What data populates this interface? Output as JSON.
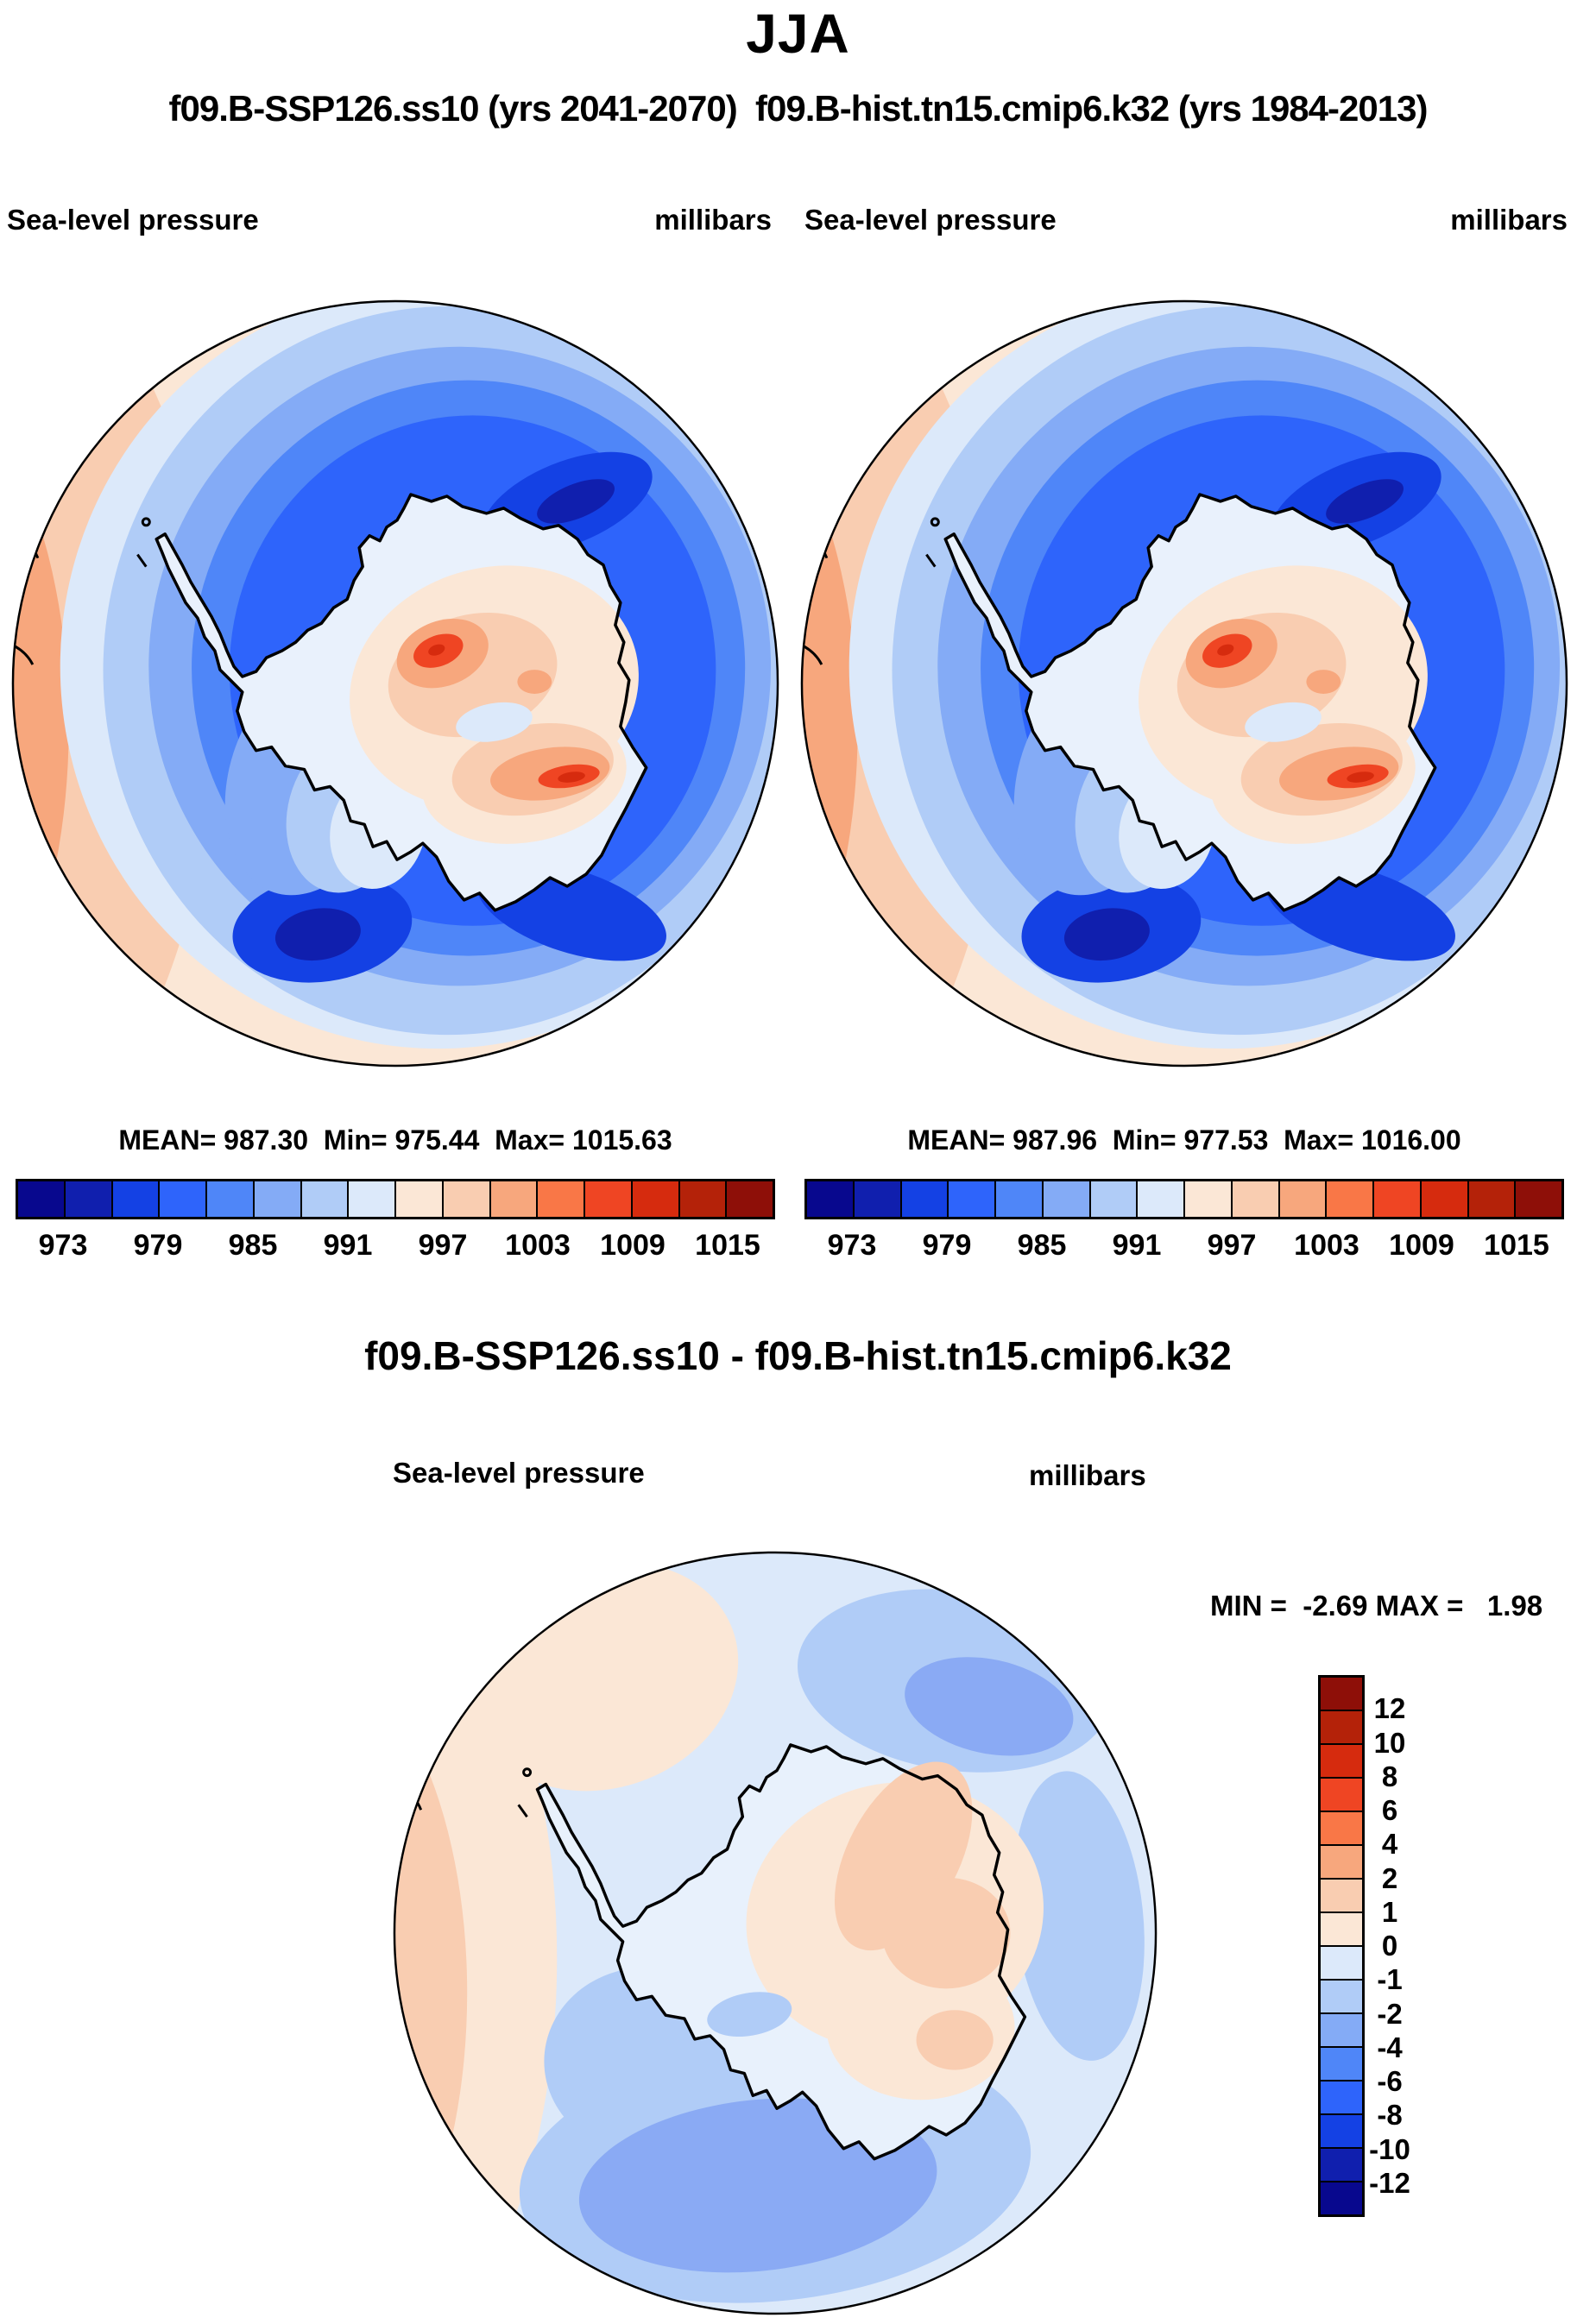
{
  "title": "JJA",
  "subtitle": "f09.B-SSP126.ss10 (yrs 2041-2070)  f09.B-hist.tn15.cmip6.k32 (yrs 1984-2013)",
  "panels": {
    "left": {
      "field_label": "Sea-level pressure",
      "units": "millibars",
      "stats": "MEAN= 987.30  Min= 975.44  Max= 1015.63"
    },
    "right": {
      "field_label": "Sea-level pressure",
      "units": "millibars",
      "stats": "MEAN= 987.96  Min= 977.53  Max= 1016.00"
    }
  },
  "pressure_colorbar": {
    "tick_labels": [
      "973",
      "979",
      "985",
      "991",
      "997",
      "1003",
      "1009",
      "1015"
    ],
    "colors": [
      "#08088E",
      "#101FAE",
      "#1441E4",
      "#2E64FB",
      "#4F86F8",
      "#84ABF6",
      "#B0CCF7",
      "#DCE9FA",
      "#FBE7D6",
      "#F9CDB1",
      "#F7A77D",
      "#F97747",
      "#EF4523",
      "#D62B0E",
      "#B42209",
      "#8E0F08"
    ]
  },
  "diff_panel": {
    "title": "f09.B-SSP126.ss10 - f09.B-hist.tn15.cmip6.k32",
    "field_label": "Sea-level pressure",
    "units": "millibars",
    "minmax": "MIN =  -2.69 MAX =   1.98",
    "colorbar": {
      "tick_labels": [
        "12",
        "10",
        "8",
        "6",
        "4",
        "2",
        "1",
        "0",
        "-1",
        "-2",
        "-4",
        "-6",
        "-8",
        "-10",
        "-12"
      ],
      "colors": [
        "#8E0F08",
        "#B42209",
        "#D62B0E",
        "#EF4523",
        "#F97747",
        "#F7A77D",
        "#F9CDB1",
        "#FBE7D6",
        "#DCE9FA",
        "#B0CCF7",
        "#84ABF6",
        "#4F86F8",
        "#2E64FB",
        "#1441E4",
        "#101FAE",
        "#08088E"
      ]
    }
  },
  "chart_data": [
    {
      "type": "heatmap",
      "subtype": "filled-contour polar stereographic map of Antarctica",
      "title": "f09.B-SSP126.ss10 (yrs 2041-2070)",
      "season": "JJA",
      "variable": "Sea-level pressure",
      "units": "millibars",
      "stats": {
        "mean": 987.3,
        "min": 975.44,
        "max": 1015.63
      },
      "contour_level_labels": [
        973,
        979,
        985,
        991,
        997,
        1003,
        1009,
        1015
      ],
      "contour_interval": 3,
      "legend_position": "bottom"
    },
    {
      "type": "heatmap",
      "subtype": "filled-contour polar stereographic map of Antarctica",
      "title": "f09.B-hist.tn15.cmip6.k32 (yrs 1984-2013)",
      "season": "JJA",
      "variable": "Sea-level pressure",
      "units": "millibars",
      "stats": {
        "mean": 987.96,
        "min": 977.53,
        "max": 1016.0
      },
      "contour_level_labels": [
        973,
        979,
        985,
        991,
        997,
        1003,
        1009,
        1015
      ],
      "contour_interval": 3,
      "legend_position": "bottom"
    },
    {
      "type": "heatmap",
      "subtype": "filled-contour polar stereographic difference map of Antarctica",
      "title": "f09.B-SSP126.ss10 - f09.B-hist.tn15.cmip6.k32",
      "season": "JJA",
      "variable": "Sea-level pressure difference",
      "units": "millibars",
      "stats": {
        "min": -2.69,
        "max": 1.98
      },
      "contour_level_labels": [
        12,
        10,
        8,
        6,
        4,
        2,
        1,
        0,
        -1,
        -2,
        -4,
        -6,
        -8,
        -10,
        -12
      ],
      "legend_position": "right"
    }
  ]
}
